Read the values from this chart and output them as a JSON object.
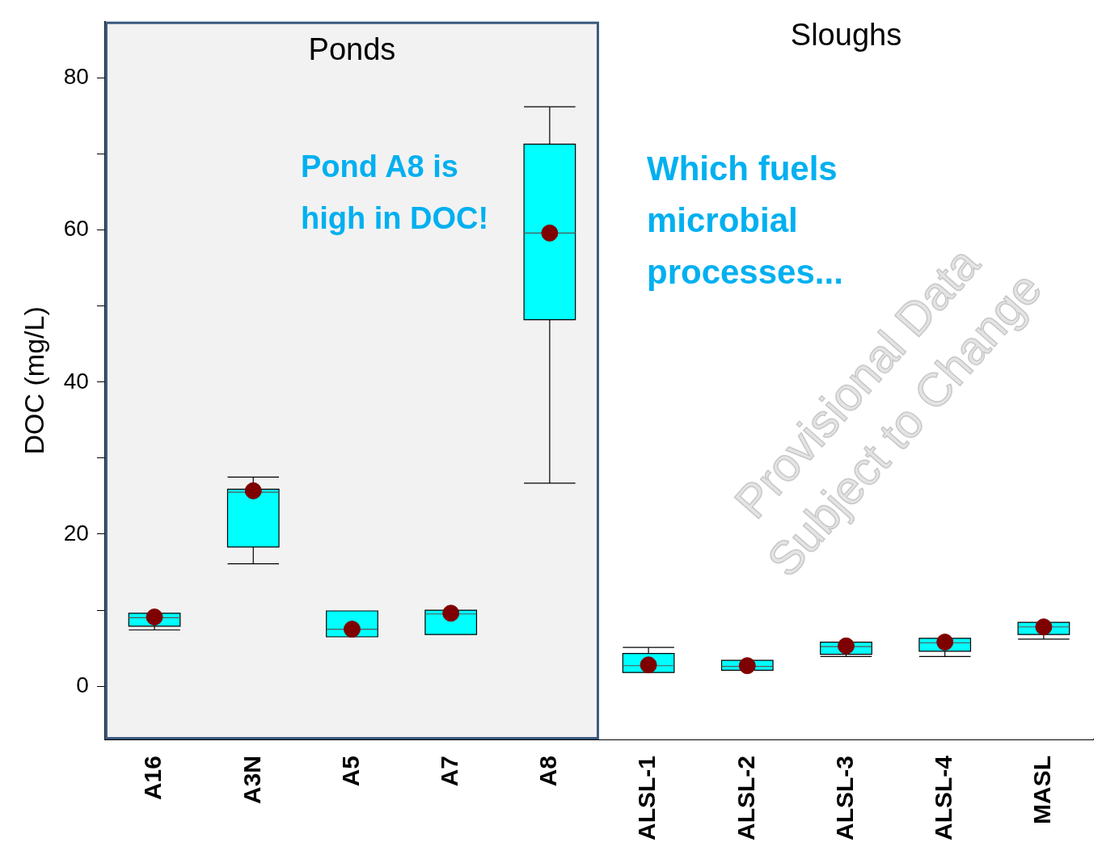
{
  "chart_data": {
    "type": "box",
    "ylabel": "DOC (mg/L)",
    "categories": [
      "A16",
      "A3N",
      "A5",
      "A7",
      "A8",
      "ALSL-1",
      "ALSL-2",
      "ALSL-3",
      "ALSL-4",
      "MASL"
    ],
    "series": [
      {
        "color": "#00ffff",
        "boxes": [
          {
            "low": 7.4,
            "q1": 7.9,
            "median": 9.0,
            "q3": 9.6,
            "high": 9.6,
            "mean": 9.1
          },
          {
            "low": 16.1,
            "q1": 18.3,
            "median": 25.5,
            "q3": 25.9,
            "high": 27.5,
            "mean": 25.7
          },
          {
            "low": 6.5,
            "q1": 6.5,
            "median": 7.5,
            "q3": 9.9,
            "high": 9.9,
            "mean": 7.5
          },
          {
            "low": 6.8,
            "q1": 6.8,
            "median": 9.5,
            "q3": 10.0,
            "high": 10.0,
            "mean": 9.6
          },
          {
            "low": 26.7,
            "q1": 48.2,
            "median": 59.6,
            "q3": 71.3,
            "high": 76.2,
            "mean": 59.6
          },
          {
            "low": 1.8,
            "q1": 1.8,
            "median": 2.7,
            "q3": 4.3,
            "high": 5.1,
            "mean": 2.8
          },
          {
            "low": 2.1,
            "q1": 2.1,
            "median": 2.6,
            "q3": 3.4,
            "high": 3.4,
            "mean": 2.7
          },
          {
            "low": 3.9,
            "q1": 4.2,
            "median": 5.2,
            "q3": 5.8,
            "high": 5.8,
            "mean": 5.3
          },
          {
            "low": 3.9,
            "q1": 4.6,
            "median": 5.7,
            "q3": 6.3,
            "high": 6.3,
            "mean": 5.8
          },
          {
            "low": 6.2,
            "q1": 6.8,
            "median": 7.8,
            "q3": 8.4,
            "high": 8.4,
            "mean": 7.8
          }
        ]
      }
    ],
    "ylim": [
      -7,
      87.4
    ],
    "yticks": [
      0,
      {
        "value": 10,
        "label": null
      },
      20,
      {
        "value": 30,
        "label": null
      },
      40,
      {
        "value": 50,
        "label": null
      },
      60,
      {
        "value": 70,
        "label": null
      },
      80
    ],
    "bands": [
      {
        "axis": "x",
        "from": "A16",
        "to": "A8",
        "label": "Ponds",
        "color": "#f2f2f2"
      },
      {
        "axis": "x",
        "from": "ALSL-1",
        "to": "MASL",
        "label": "Sloughs",
        "color": "#ffffff"
      }
    ],
    "annotations": [
      "Pond A8 is high in DOC!",
      "Which fuels microbial processes...",
      "Provisional Data Subject to Change"
    ],
    "grid": false,
    "legend": false
  }
}
